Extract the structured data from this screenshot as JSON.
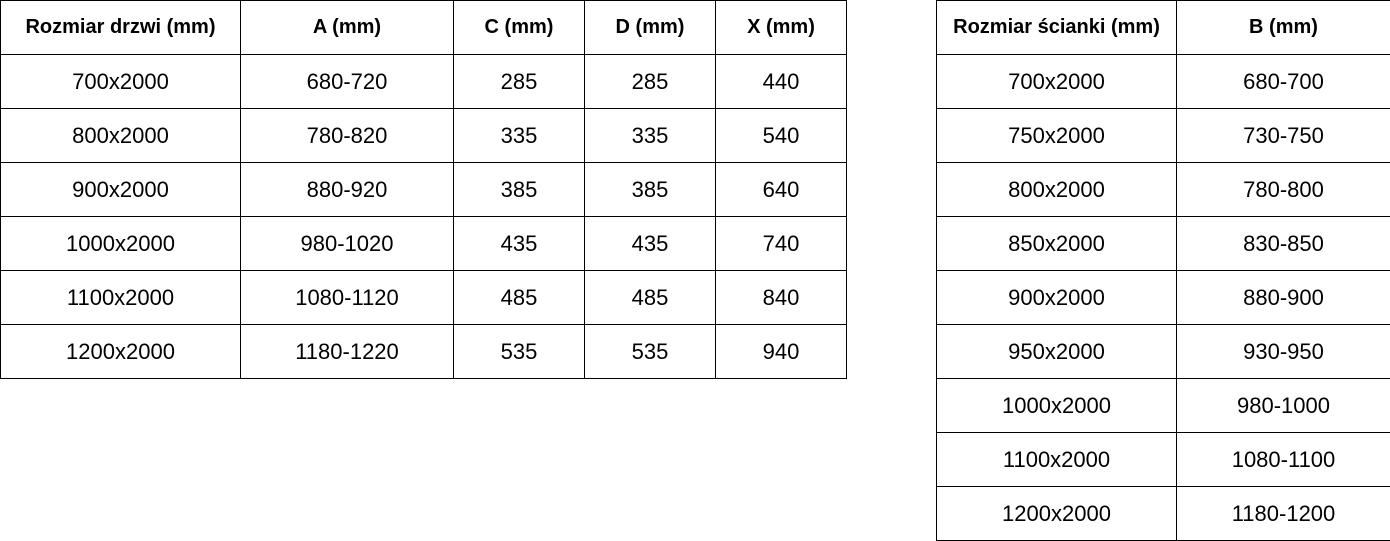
{
  "doors_table": {
    "headers": [
      "Rozmiar drzwi (mm)",
      "A (mm)",
      "C (mm)",
      "D (mm)",
      "X (mm)"
    ],
    "rows": [
      [
        "700x2000",
        "680-720",
        "285",
        "285",
        "440"
      ],
      [
        "800x2000",
        "780-820",
        "335",
        "335",
        "540"
      ],
      [
        "900x2000",
        "880-920",
        "385",
        "385",
        "640"
      ],
      [
        "1000x2000",
        "980-1020",
        "435",
        "435",
        "740"
      ],
      [
        "1100x2000",
        "1080-1120",
        "485",
        "485",
        "840"
      ],
      [
        "1200x2000",
        "1180-1220",
        "535",
        "535",
        "940"
      ]
    ]
  },
  "wall_table": {
    "headers": [
      "Rozmiar ścianki (mm)",
      "B (mm)"
    ],
    "rows": [
      [
        "700x2000",
        "680-700"
      ],
      [
        "750x2000",
        "730-750"
      ],
      [
        "800x2000",
        "780-800"
      ],
      [
        "850x2000",
        "830-850"
      ],
      [
        "900x2000",
        "880-900"
      ],
      [
        "950x2000",
        "930-950"
      ],
      [
        "1000x2000",
        "980-1000"
      ],
      [
        "1100x2000",
        "1080-1100"
      ],
      [
        "1200x2000",
        "1180-1200"
      ]
    ]
  }
}
